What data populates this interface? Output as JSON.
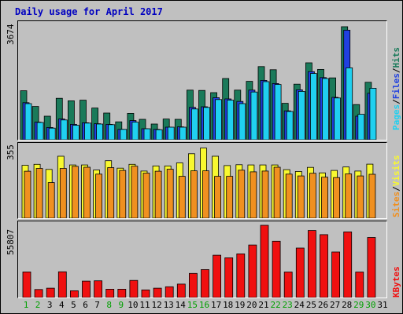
{
  "title": "Daily usage for April 2017",
  "chart_data": [
    {
      "type": "bar",
      "categories": [
        "1",
        "2",
        "3",
        "4",
        "5",
        "6",
        "7",
        "8",
        "9",
        "10",
        "11",
        "12",
        "13",
        "14",
        "15",
        "16",
        "17",
        "18",
        "19",
        "20",
        "21",
        "22",
        "23",
        "24",
        "25",
        "26",
        "27",
        "28",
        "29",
        "30",
        "31"
      ],
      "ymax_label": "3674",
      "ylim": [
        0,
        3674
      ],
      "series": [
        {
          "name": "Hits",
          "color": "#1a7a5a",
          "values": [
            1560,
            1060,
            750,
            1320,
            1240,
            1260,
            1010,
            850,
            570,
            840,
            650,
            500,
            660,
            650,
            1580,
            1570,
            1500,
            1950,
            1580,
            1860,
            2330,
            2230,
            1160,
            1770,
            2450,
            2240,
            1970,
            3600,
            1120,
            1830,
            0
          ]
        },
        {
          "name": "Files",
          "color": "#2040e0",
          "values": [
            1180,
            560,
            390,
            660,
            490,
            540,
            510,
            490,
            330,
            610,
            350,
            330,
            400,
            410,
            1030,
            1050,
            1340,
            1300,
            1220,
            1580,
            1890,
            1790,
            920,
            1590,
            2170,
            1980,
            1350,
            3490,
            750,
            1480,
            0
          ]
        },
        {
          "name": "Pages",
          "color": "#20d0f0",
          "values": [
            1150,
            550,
            370,
            630,
            460,
            530,
            500,
            480,
            330,
            560,
            350,
            320,
            400,
            400,
            980,
            1030,
            1280,
            1260,
            1150,
            1520,
            1850,
            1760,
            900,
            1540,
            2110,
            1950,
            1330,
            2290,
            810,
            1640,
            0
          ]
        }
      ],
      "grid": false
    },
    {
      "type": "bar",
      "categories": [
        "1",
        "2",
        "3",
        "4",
        "5",
        "6",
        "7",
        "8",
        "9",
        "10",
        "11",
        "12",
        "13",
        "14",
        "15",
        "16",
        "17",
        "18",
        "19",
        "20",
        "21",
        "22",
        "23",
        "24",
        "25",
        "26",
        "27",
        "28",
        "29",
        "30",
        "31"
      ],
      "ymax_label": "355",
      "ylim": [
        0,
        355
      ],
      "series": [
        {
          "name": "Visits",
          "color": "#f8f830",
          "values": [
            260,
            265,
            240,
            305,
            262,
            262,
            237,
            283,
            246,
            265,
            232,
            257,
            257,
            272,
            317,
            345,
            305,
            259,
            263,
            262,
            262,
            262,
            239,
            230,
            250,
            223,
            235,
            252,
            232,
            266,
            0
          ]
        },
        {
          "name": "Sites",
          "color": "#f09020",
          "values": [
            231,
            245,
            175,
            245,
            255,
            251,
            217,
            249,
            235,
            256,
            222,
            231,
            241,
            206,
            233,
            233,
            206,
            206,
            236,
            228,
            232,
            251,
            217,
            208,
            221,
            202,
            200,
            218,
            208,
            216,
            0
          ]
        }
      ],
      "grid": false
    },
    {
      "type": "bar",
      "categories": [
        "1",
        "2",
        "3",
        "4",
        "5",
        "6",
        "7",
        "8",
        "9",
        "10",
        "11",
        "12",
        "13",
        "14",
        "15",
        "16",
        "17",
        "18",
        "19",
        "20",
        "21",
        "22",
        "23",
        "24",
        "25",
        "26",
        "27",
        "28",
        "29",
        "30",
        "31"
      ],
      "ymax_label": "55807",
      "ylim": [
        0,
        55807
      ],
      "series": [
        {
          "name": "KBytes",
          "color": "#f01010",
          "values": [
            19800,
            6200,
            7200,
            19900,
            5200,
            12700,
            12900,
            6400,
            6400,
            13200,
            5900,
            7200,
            8300,
            10400,
            18600,
            21600,
            32700,
            30700,
            33700,
            40600,
            55800,
            43500,
            19700,
            38200,
            51800,
            48600,
            35200,
            50700,
            19700,
            46400,
            0
          ]
        }
      ],
      "grid": false
    }
  ],
  "legend_top": {
    "pages": "Pages",
    "files": "Files",
    "hits": "Hits",
    "sep": "/"
  },
  "legend_mid": {
    "sites": "Sites",
    "visits": "Visits",
    "sep": "/"
  },
  "legend_bot": {
    "kbytes": "KBytes"
  },
  "colors": {
    "background": "#c0c0c0",
    "title": "#0000c0",
    "weekend_tick": "#00a000",
    "hits": "#1a7a5a",
    "files": "#2040e0",
    "pages": "#20d0f0",
    "visits": "#f8f830",
    "sites": "#f09020",
    "kbytes": "#f01010"
  },
  "weekend_days": [
    "1",
    "2",
    "8",
    "9",
    "15",
    "16",
    "22",
    "23",
    "29",
    "30"
  ]
}
